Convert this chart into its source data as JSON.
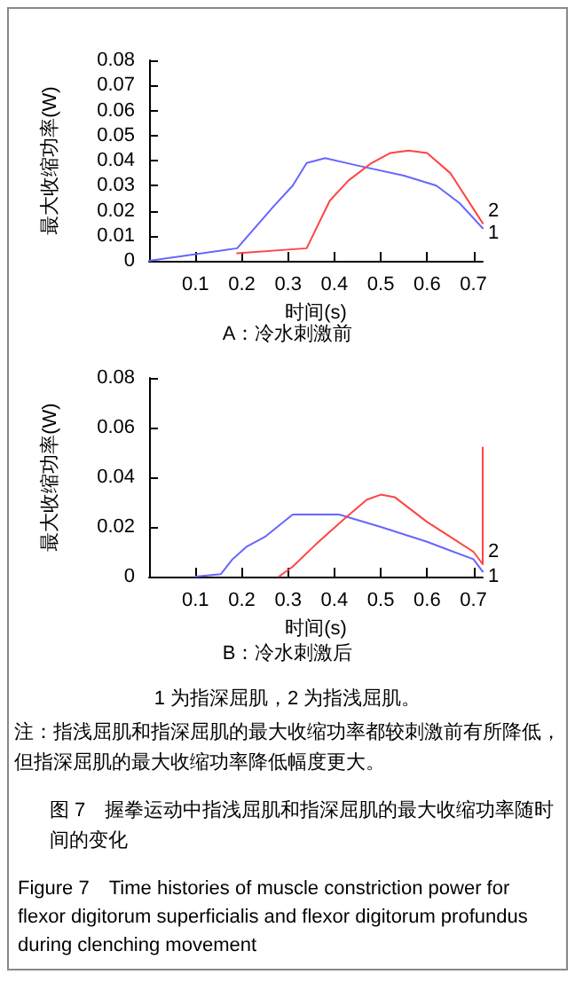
{
  "chart_data": [
    {
      "type": "line",
      "title": "A：冷水刺激前",
      "xlabel": "时间(s)",
      "ylabel": "最大收缩功率(W)",
      "xlim": [
        0,
        0.72
      ],
      "ylim": [
        0,
        0.08
      ],
      "xticks": [
        0.1,
        0.2,
        0.3,
        0.4,
        0.5,
        0.6,
        0.7
      ],
      "yticks": [
        0,
        0.01,
        0.02,
        0.03,
        0.04,
        0.05,
        0.06,
        0.07,
        0.08
      ],
      "grid": false,
      "marker": "none",
      "line_style": "solid",
      "series": [
        {
          "name": "1",
          "color": "#6666ff",
          "x": [
            0,
            0.19,
            0.27,
            0.31,
            0.34,
            0.38,
            0.45,
            0.55,
            0.62,
            0.67,
            0.72
          ],
          "values": [
            0,
            0.005,
            0.022,
            0.03,
            0.039,
            0.041,
            0.038,
            0.034,
            0.03,
            0.023,
            0.013
          ]
        },
        {
          "name": "2",
          "color": "#ff4444",
          "x": [
            0.19,
            0.34,
            0.39,
            0.43,
            0.48,
            0.52,
            0.56,
            0.6,
            0.65,
            0.72
          ],
          "values": [
            0.003,
            0.005,
            0.024,
            0.032,
            0.039,
            0.043,
            0.044,
            0.043,
            0.035,
            0.015
          ]
        }
      ],
      "legend": false
    },
    {
      "type": "line",
      "title": "B：冷水刺激后",
      "xlabel": "时间(s)",
      "ylabel": "最大收缩功率(W)",
      "xlim": [
        0,
        0.72
      ],
      "ylim": [
        0,
        0.08
      ],
      "xticks": [
        0.1,
        0.2,
        0.3,
        0.4,
        0.5,
        0.6,
        0.7
      ],
      "yticks": [
        0,
        0.02,
        0.04,
        0.06,
        0.08
      ],
      "grid": false,
      "marker": "none",
      "line_style": "solid",
      "series": [
        {
          "name": "1",
          "color": "#6666ff",
          "x": [
            0.1,
            0.155,
            0.18,
            0.21,
            0.25,
            0.31,
            0.41,
            0.5,
            0.6,
            0.7,
            0.72
          ],
          "values": [
            0,
            0.001,
            0.007,
            0.012,
            0.016,
            0.025,
            0.025,
            0.02,
            0.014,
            0.007,
            0.002
          ]
        },
        {
          "name": "2",
          "color": "#ff4444",
          "x": [
            0.28,
            0.31,
            0.36,
            0.42,
            0.47,
            0.5,
            0.53,
            0.6,
            0.65,
            0.7,
            0.72,
            0.72,
            0.72
          ],
          "values": [
            0,
            0.004,
            0.013,
            0.023,
            0.031,
            0.033,
            0.032,
            0.022,
            0.016,
            0.01,
            0.005,
            0.052,
            0.005
          ]
        }
      ],
      "legend": false
    },
    {
      "type": "other",
      "annotations": [
        "1 为指深屈肌，2 为指浅屈肌。",
        "注：指浅屈肌和指深屈肌的最大收缩功率都较刺激前有所降低，但指深屈肌的最大收缩功率降低幅度更大。",
        "图 7　握拳运动中指浅屈肌和指深屈肌的最大收缩功率随时间的变化",
        "Figure 7　Time histories of muscle constriction power for flexor digitorum superficialis and flexor digitorum profundus during clenching movement"
      ]
    }
  ]
}
